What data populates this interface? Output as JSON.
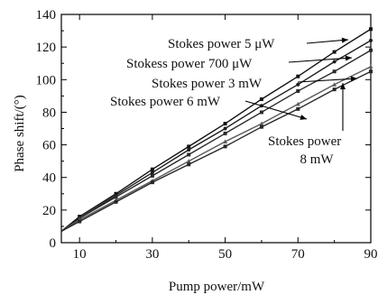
{
  "chart_data": {
    "type": "line",
    "xlabel": "Pump power/mW",
    "ylabel": "Phase shift/(°)",
    "xlim": [
      5,
      90
    ],
    "ylim": [
      0,
      140
    ],
    "xticks": [
      10,
      30,
      50,
      70,
      90
    ],
    "yticks": [
      0,
      20,
      40,
      60,
      80,
      100,
      120,
      140
    ],
    "grid": false,
    "x": [
      5,
      10,
      20,
      30,
      40,
      50,
      60,
      70,
      80,
      90
    ],
    "series": [
      {
        "name": "Stokes power 5 μW",
        "values": [
          7,
          16,
          30,
          45,
          59,
          73,
          88,
          102,
          117,
          131
        ]
      },
      {
        "name": "Stokess power 700 μW",
        "values": [
          7,
          15,
          29,
          43,
          57,
          70,
          84,
          97,
          111,
          124
        ]
      },
      {
        "name": "Stokes power 3 mW",
        "values": [
          7,
          15,
          28,
          41,
          54,
          67,
          80,
          93,
          105,
          118
        ]
      },
      {
        "name": "Stokes power 6 mW",
        "values": [
          7,
          14,
          26,
          38,
          50,
          62,
          73,
          85,
          97,
          108
        ]
      },
      {
        "name": "Stokes power 8 mW",
        "values": [
          7,
          13,
          25,
          37,
          48,
          59,
          71,
          82,
          94,
          105
        ]
      }
    ],
    "annotations": [
      {
        "text": "Stokes power 5 μW",
        "series": 0
      },
      {
        "text": "Stokess power 700 μW",
        "series": 1
      },
      {
        "text": "Stokes power 3 mW",
        "series": 2
      },
      {
        "text": "Stokes power 6 mW",
        "series": 3
      },
      {
        "text": "Stokes power",
        "text2": "8 mW",
        "series": 4
      }
    ]
  }
}
